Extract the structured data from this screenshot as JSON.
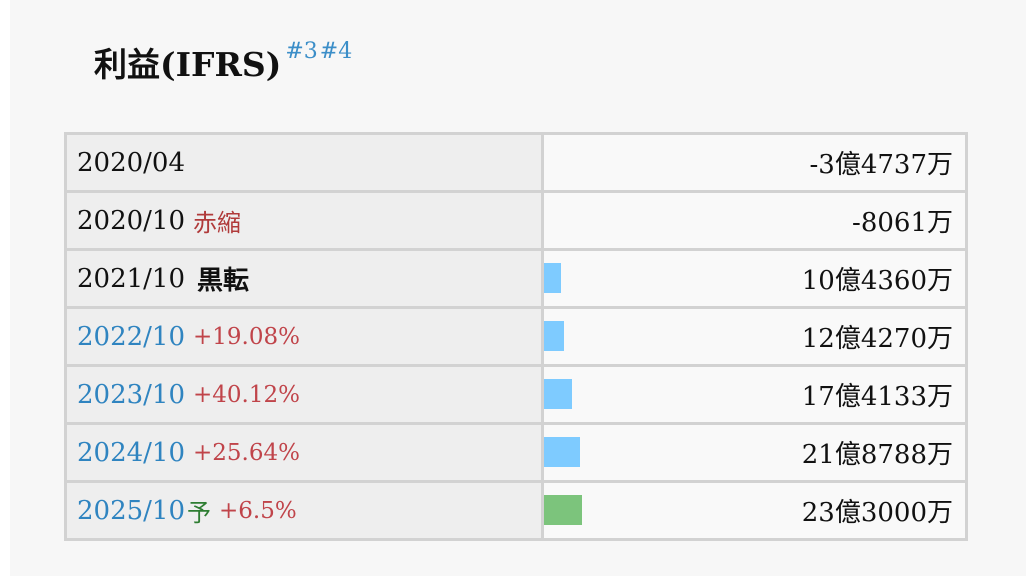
{
  "title": {
    "text": "利益(IFRS)",
    "refs": [
      "#3",
      "#4"
    ]
  },
  "colors": {
    "bar_actual": "#7ecbff",
    "bar_forecast": "#7cc47c"
  },
  "bar_max_value_oku": 23.3,
  "rows": [
    {
      "period": "2020/04",
      "tag": "",
      "growth": "",
      "forecast": "",
      "value": "-3億4737万",
      "amount_oku": -3.4737,
      "bar_fraction": 0,
      "bar_kind": "none",
      "is_link": false
    },
    {
      "period": "2020/10",
      "tag": "赤縮",
      "growth": "",
      "forecast": "",
      "value": "-8061万",
      "amount_oku": -0.8061,
      "bar_fraction": 0,
      "bar_kind": "none",
      "is_link": false
    },
    {
      "period": "2021/10",
      "tag": "黒転",
      "growth": "",
      "forecast": "",
      "value": "10億4360万",
      "amount_oku": 10.436,
      "bar_fraction": 0.448,
      "bar_kind": "actual",
      "is_link": false
    },
    {
      "period": "2022/10",
      "tag": "",
      "growth": "+19.08%",
      "forecast": "",
      "value": "12億4270万",
      "amount_oku": 12.427,
      "bar_fraction": 0.533,
      "bar_kind": "actual",
      "is_link": true
    },
    {
      "period": "2023/10",
      "tag": "",
      "growth": "+40.12%",
      "forecast": "",
      "value": "17億4133万",
      "amount_oku": 17.4133,
      "bar_fraction": 0.747,
      "bar_kind": "actual",
      "is_link": true
    },
    {
      "period": "2024/10",
      "tag": "",
      "growth": "+25.64%",
      "forecast": "",
      "value": "21億8788万",
      "amount_oku": 21.8788,
      "bar_fraction": 0.939,
      "bar_kind": "actual",
      "is_link": true
    },
    {
      "period": "2025/10",
      "tag": "",
      "growth": "+6.5%",
      "forecast": "予",
      "value": "23億3000万",
      "amount_oku": 23.3,
      "bar_fraction": 1.0,
      "bar_kind": "forecast",
      "is_link": true
    }
  ]
}
